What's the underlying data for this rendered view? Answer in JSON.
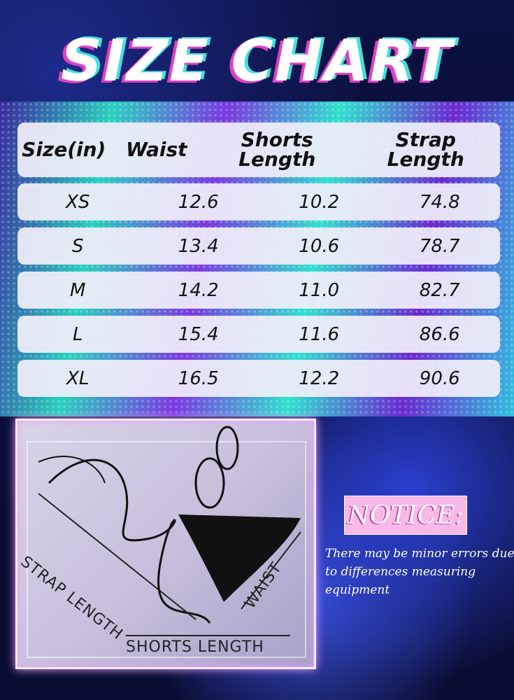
{
  "title": "SIZE CHART",
  "table": {
    "headers": [
      "Size(in)",
      "Waist",
      "Shorts Length",
      "Strap Length"
    ],
    "rows": [
      [
        "XS",
        "12.6",
        "10.2",
        "74.8"
      ],
      [
        "S",
        "13.4",
        "10.6",
        "78.7"
      ],
      [
        "M",
        "14.2",
        "11.0",
        "82.7"
      ],
      [
        "L",
        "15.4",
        "11.6",
        "86.6"
      ],
      [
        "XL",
        "16.5",
        "12.2",
        "90.6"
      ]
    ]
  },
  "diagram": {
    "strap_label": "STRAP LENGTH",
    "waist_label": "WAIST",
    "shorts_label": "SHORTS LENGTH"
  },
  "notice": {
    "heading": "NOTICE:",
    "text": "There may be minor errors due to differences measuring equipment"
  },
  "colors": {
    "notice_bg": "#f8b8e8",
    "title_shadow_pink": "#e040c0",
    "title_shadow_cyan": "#40e0e0"
  }
}
